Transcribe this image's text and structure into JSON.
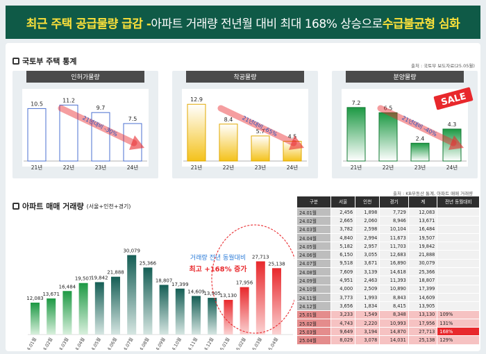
{
  "header": {
    "title_a": "최근 주택 공급물량 급감 - ",
    "title_b": "아파트 거래량 전년월 대비 최대 168% 상승으로 ",
    "title_c": "수급불균형 심화"
  },
  "section1": {
    "title": "국토부 주택 통계",
    "source": "출처 : 국토부 보도자료(25.05월)"
  },
  "section2": {
    "title": "아파트 매매 거래량",
    "title_sub": "(서울+인천+경기)",
    "source": "출처 : KB부동산 통계, 아파트 매매 거래량"
  },
  "colors": {
    "green": "#1d9944",
    "yellow": "#f4c21b",
    "red": "#e8282c",
    "teal": "#155e55",
    "header": "#0f5a47"
  },
  "chart_data": [
    {
      "type": "bar",
      "title": "인허가물량",
      "categories": [
        "21년",
        "22년",
        "23년",
        "24년"
      ],
      "values": [
        10.5,
        11.2,
        9.7,
        7.5
      ],
      "ylim": [
        0,
        12.5
      ],
      "annotation": "21년대비 -30%",
      "fill": "#ffffff",
      "stroke": "#4a6fd0"
    },
    {
      "type": "bar",
      "title": "착공물량",
      "categories": [
        "21년",
        "22년",
        "23년",
        "24년"
      ],
      "values": [
        12.9,
        8.4,
        5.7,
        4.5
      ],
      "ylim": [
        0,
        14.2
      ],
      "annotation": "21년대비 -65%",
      "fill": "#f4c21b",
      "stroke": "#e0a800"
    },
    {
      "type": "bar",
      "title": "분양물량",
      "categories": [
        "21년",
        "22년",
        "23년",
        "24년"
      ],
      "values": [
        7.2,
        6.5,
        2.4,
        4.3
      ],
      "ylim": [
        0,
        8.4
      ],
      "annotation": "21년대비 -40%",
      "fill": "#1d9944",
      "stroke": "#127a33",
      "badge": "SALE"
    },
    {
      "type": "bar",
      "title": "아파트 매매 거래량",
      "categories": [
        "24.01월",
        "24.02월",
        "24.03월",
        "24.04월",
        "24.05월",
        "24.06월",
        "24.07월",
        "24.08월",
        "24.09월",
        "24.10월",
        "24.11월",
        "24.12월",
        "25.01월",
        "25.02월",
        "25.03월",
        "25.04월"
      ],
      "values": [
        12083,
        13671,
        16484,
        19507,
        19842,
        21888,
        30079,
        25366,
        18807,
        17399,
        14609,
        13905,
        13130,
        17956,
        27713,
        25138
      ],
      "ylim": [
        0,
        31000
      ],
      "annotation_line1": "거래량 전년 동월대비",
      "annotation_line2": "최고 +168% 증가"
    },
    {
      "type": "table",
      "columns": [
        "구분",
        "서울",
        "인천",
        "경기",
        "계",
        "전년 동월대비"
      ],
      "rows": [
        [
          "24.01월",
          "2,456",
          "1,898",
          "7,729",
          "12,083",
          ""
        ],
        [
          "24.02월",
          "2,665",
          "2,060",
          "8,946",
          "13,671",
          ""
        ],
        [
          "24.03월",
          "3,782",
          "2,598",
          "10,104",
          "16,484",
          ""
        ],
        [
          "24.04월",
          "4,840",
          "2,994",
          "11,673",
          "19,507",
          ""
        ],
        [
          "24.05월",
          "5,182",
          "2,957",
          "11,703",
          "19,842",
          ""
        ],
        [
          "24.06월",
          "6,150",
          "3,055",
          "12,683",
          "21,888",
          ""
        ],
        [
          "24.07월",
          "9,518",
          "3,671",
          "16,890",
          "30,079",
          ""
        ],
        [
          "24.08월",
          "7,609",
          "3,139",
          "14,618",
          "25,366",
          ""
        ],
        [
          "24.09월",
          "4,951",
          "2,463",
          "11,393",
          "18,807",
          ""
        ],
        [
          "24.10월",
          "4,000",
          "2,509",
          "10,890",
          "17,399",
          ""
        ],
        [
          "24.11월",
          "3,773",
          "1,993",
          "8,843",
          "14,609",
          ""
        ],
        [
          "24.12월",
          "3,656",
          "1,834",
          "8,415",
          "13,905",
          ""
        ],
        [
          "25.01월",
          "3,233",
          "1,549",
          "8,348",
          "13,130",
          "109%"
        ],
        [
          "25.02월",
          "4,743",
          "2,220",
          "10,993",
          "17,956",
          "131%"
        ],
        [
          "25.03월",
          "9,649",
          "3,194",
          "14,870",
          "27,713",
          "168%"
        ],
        [
          "25.04월",
          "8,029",
          "3,078",
          "14,031",
          "25,138",
          "129%"
        ]
      ]
    }
  ]
}
